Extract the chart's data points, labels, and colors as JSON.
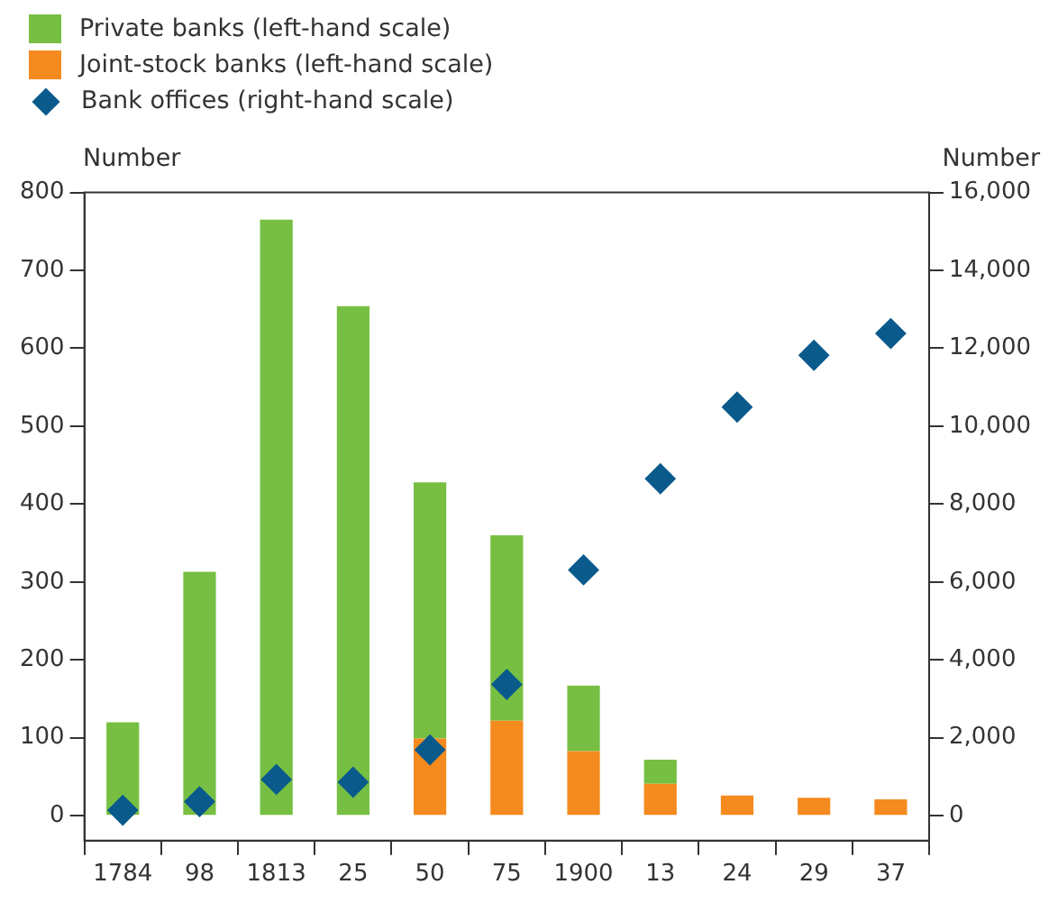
{
  "chart_data": {
    "type": "bar",
    "stacked": true,
    "categories": [
      "1784",
      "98",
      "1813",
      "25",
      "50",
      "75",
      "1900",
      "13",
      "24",
      "29",
      "37"
    ],
    "series": [
      {
        "name": "Joint-stock banks (left-hand scale)",
        "color": "#f58a1f",
        "values": [
          0,
          0,
          0,
          0,
          99,
          122,
          83,
          41,
          26,
          23,
          21
        ]
      },
      {
        "name": "Private banks (left-hand scale)",
        "color": "#77bf43",
        "values": [
          120,
          313,
          765,
          654,
          329,
          238,
          84,
          31,
          null,
          null,
          null
        ]
      },
      {
        "name": "Bank offices (right-hand scale)",
        "type": "scatter",
        "axis": "y2",
        "marker": "diamond",
        "color": "#0a5a8c",
        "values": [
          140,
          360,
          930,
          860,
          1690,
          3370,
          6310,
          8650,
          10490,
          11820,
          12380
        ]
      }
    ],
    "ylabel": "Number",
    "y2label": "Number",
    "ylim": [
      -32,
      800
    ],
    "yticks": [
      0,
      100,
      200,
      300,
      400,
      500,
      600,
      700,
      800
    ],
    "y2lim": [
      -640,
      16000
    ],
    "y2ticks": [
      0,
      {
        "value": 2000,
        "label": "2,000"
      },
      {
        "value": 4000,
        "label": "4,000"
      },
      {
        "value": 6000,
        "label": "6,000"
      },
      {
        "value": 8000,
        "label": "8,000"
      },
      {
        "value": 10000,
        "label": "10,000"
      },
      {
        "value": 12000,
        "label": "12,000"
      },
      {
        "value": 14000,
        "label": "14,000"
      },
      {
        "value": 16000,
        "label": "16,000"
      }
    ],
    "legend": "top left",
    "grid": false
  }
}
